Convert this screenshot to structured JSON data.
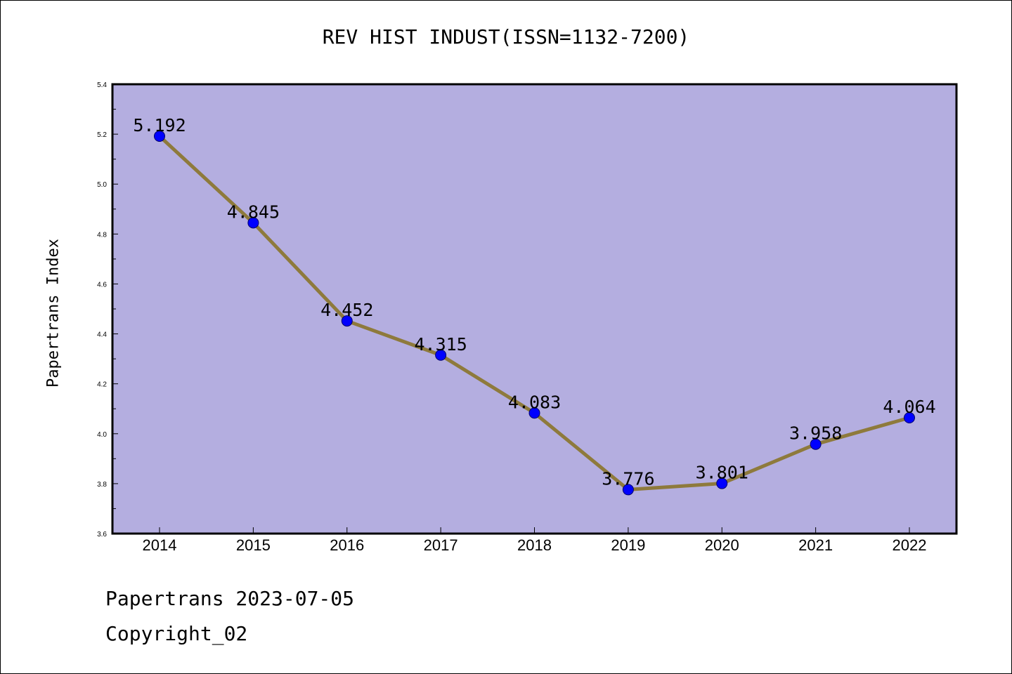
{
  "chart_data": {
    "type": "line",
    "title": "REV HIST INDUST(ISSN=1132-7200)",
    "ylabel": "Papertrans Index",
    "xlabel": "",
    "categories": [
      "2014",
      "2015",
      "2016",
      "2017",
      "2018",
      "2019",
      "2020",
      "2021",
      "2022"
    ],
    "series": [
      {
        "values": [
          5.192,
          4.845,
          4.452,
          4.315,
          4.083,
          3.776,
          3.801,
          3.958,
          4.064
        ],
        "labels": [
          "5.192",
          "4.845",
          "4.452",
          "4.315",
          "4.083",
          "3.776",
          "3.801",
          "3.958",
          "4.064"
        ]
      }
    ],
    "ylim": [
      3.6,
      5.4
    ],
    "yticks": [
      "3.6",
      "3.8",
      "4.0",
      "4.2",
      "4.4",
      "4.6",
      "4.8",
      "5.0",
      "5.2",
      "5.4"
    ],
    "grid": false,
    "colors": {
      "plot_background": "#b4aee0",
      "line": "#8e7a3c",
      "marker": "#0000ff",
      "marker_edge": "#00006e"
    }
  },
  "footer": {
    "date_text": "Papertrans 2023-07-05",
    "copyright_text": "Copyright_02"
  }
}
